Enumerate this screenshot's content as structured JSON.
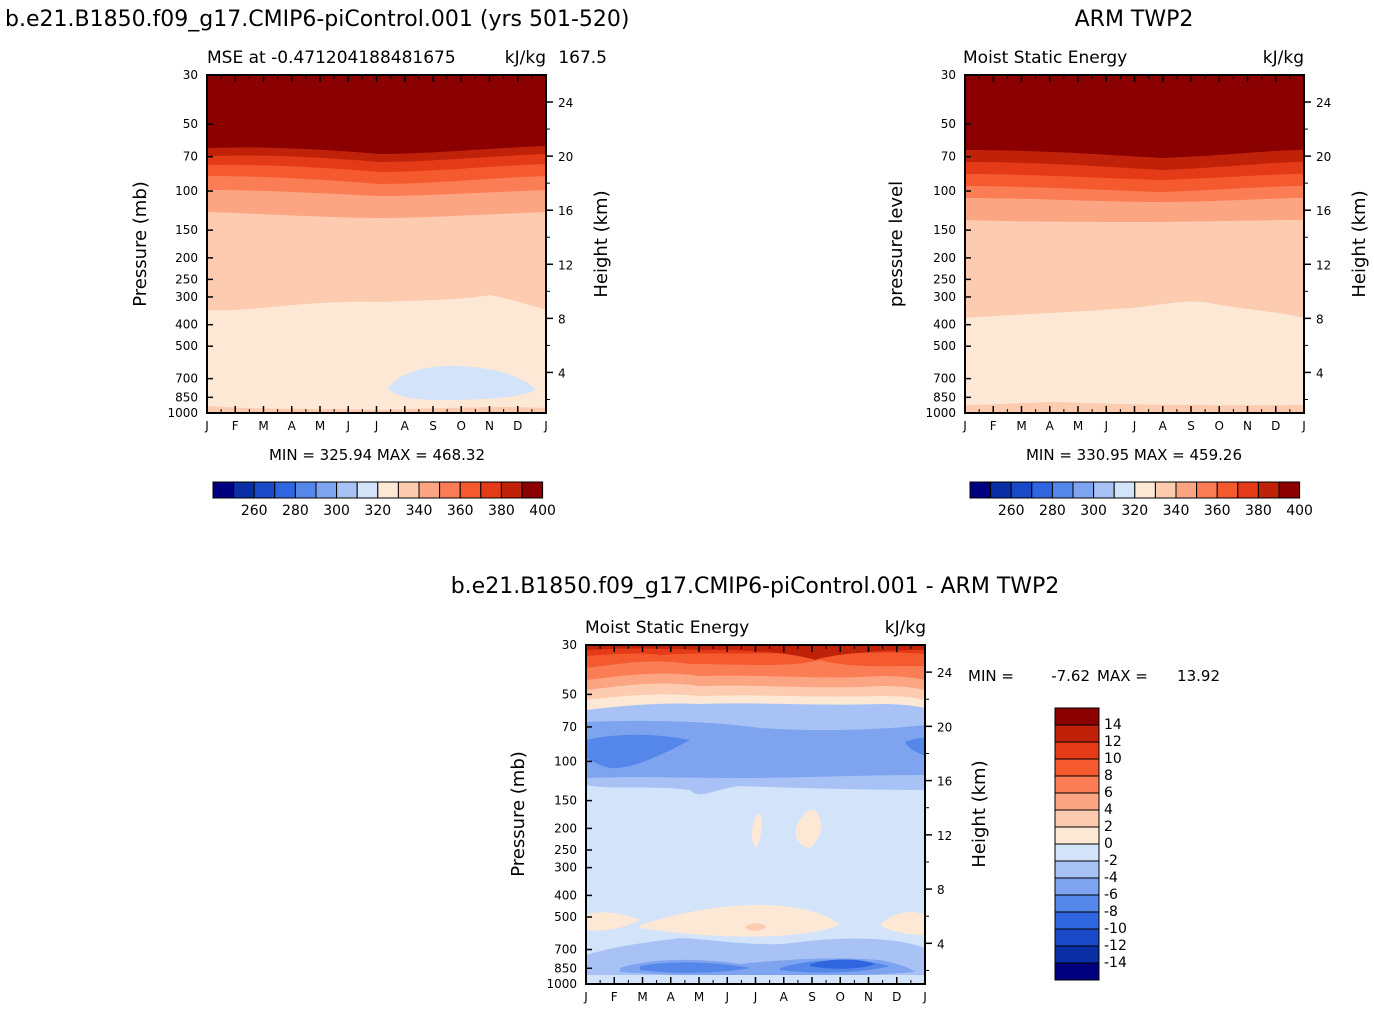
{
  "colors": {
    "abs_palette": [
      "#00007f",
      "#0a2fa5",
      "#1a49c8",
      "#2f66e0",
      "#5587eb",
      "#7ea4f0",
      "#a8c2f5",
      "#d2e3fa",
      "#fde8d6",
      "#fdcbb0",
      "#fca582",
      "#fb7d55",
      "#f55a2f",
      "#e53a17",
      "#bf2208",
      "#8b0000"
    ],
    "diff_palette": [
      "#00007f",
      "#0a2fa5",
      "#1a49c8",
      "#2f66e0",
      "#5587eb",
      "#7ea4f0",
      "#a8c2f5",
      "#d2e3fa",
      "#fde8d6",
      "#fdcbb0",
      "#fca582",
      "#fb7d55",
      "#f55a2f",
      "#e53a17",
      "#bf2208",
      "#8b0000"
    ]
  },
  "header": {
    "model_title": "b.e21.B1850.f09_g17.CMIP6-piControl.001 (yrs 501-520)",
    "obs_title": "ARM TWP2",
    "diff_title": "b.e21.B1850.f09_g17.CMIP6-piControl.001 - ARM TWP2"
  },
  "chart_data": [
    {
      "type": "heatmap",
      "panel": "model",
      "left_title": "MSE at -0.471204188481675",
      "right_title": "kJ/kg",
      "right_title_overlap": "167.5",
      "ylabel": "Pressure (mb)",
      "y2label": "Height (km)",
      "x_ticks": [
        "J",
        "F",
        "M",
        "A",
        "M",
        "J",
        "J",
        "A",
        "S",
        "O",
        "N",
        "D",
        "J"
      ],
      "y_ticks": [
        "30",
        "50",
        "70",
        "100",
        "150",
        "200",
        "250",
        "300",
        "400",
        "500",
        "700",
        "850",
        "1000"
      ],
      "y2_ticks": [
        "24",
        "20",
        "16",
        "12",
        "8",
        "4"
      ],
      "stats": "MIN = 325.94 MAX = 468.32",
      "min": 325.94,
      "max": 468.32,
      "colorbar_labels": [
        "260",
        "280",
        "300",
        "320",
        "340",
        "360",
        "380",
        "400"
      ],
      "contour_levels": [
        250,
        260,
        270,
        280,
        290,
        300,
        310,
        320,
        330,
        340,
        350,
        360,
        370,
        380,
        390,
        400
      ]
    },
    {
      "type": "heatmap",
      "panel": "obs",
      "left_title": "Moist Static Energy",
      "right_title": "kJ/kg",
      "ylabel": "pressure level",
      "y2label": "Height (km)",
      "x_ticks": [
        "J",
        "F",
        "M",
        "A",
        "M",
        "J",
        "J",
        "A",
        "S",
        "O",
        "N",
        "D",
        "J"
      ],
      "y_ticks": [
        "30",
        "50",
        "70",
        "100",
        "150",
        "200",
        "250",
        "300",
        "400",
        "500",
        "700",
        "850",
        "1000"
      ],
      "y2_ticks": [
        "24",
        "20",
        "16",
        "12",
        "8",
        "4"
      ],
      "stats": "MIN = 330.95 MAX = 459.26",
      "min": 330.95,
      "max": 459.26,
      "colorbar_labels": [
        "260",
        "280",
        "300",
        "320",
        "340",
        "360",
        "380",
        "400"
      ],
      "contour_levels": [
        250,
        260,
        270,
        280,
        290,
        300,
        310,
        320,
        330,
        340,
        350,
        360,
        370,
        380,
        390,
        400
      ]
    },
    {
      "type": "heatmap",
      "panel": "diff",
      "left_title": "Moist Static Energy",
      "right_title": "kJ/kg",
      "ylabel": "Pressure (mb)",
      "y2label": "Height (km)",
      "x_ticks": [
        "J",
        "F",
        "M",
        "A",
        "M",
        "J",
        "J",
        "A",
        "S",
        "O",
        "N",
        "D",
        "J"
      ],
      "y_ticks": [
        "30",
        "50",
        "70",
        "100",
        "150",
        "200",
        "250",
        "300",
        "400",
        "500",
        "700",
        "850",
        "1000"
      ],
      "y2_ticks": [
        "24",
        "20",
        "16",
        "12",
        "8",
        "4"
      ],
      "stats_min_label": "MIN =",
      "stats_min": "-7.62",
      "stats_max_label": "MAX =",
      "stats_max": "13.92",
      "min": -7.62,
      "max": 13.92,
      "colorbar_labels": [
        "14",
        "12",
        "10",
        "8",
        "6",
        "4",
        "2",
        "0",
        "-2",
        "-4",
        "-6",
        "-8",
        "-10",
        "-12",
        "-14"
      ],
      "contour_levels": [
        -14,
        -12,
        -10,
        -8,
        -6,
        -4,
        -2,
        0,
        2,
        4,
        6,
        8,
        10,
        12,
        14
      ]
    }
  ]
}
